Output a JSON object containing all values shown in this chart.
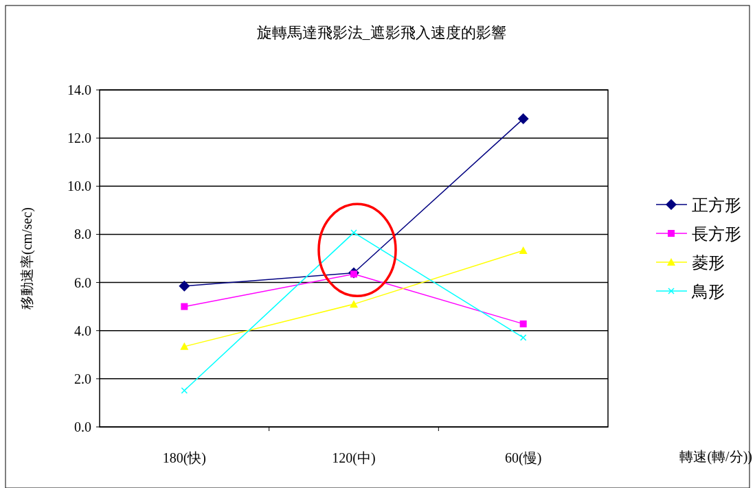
{
  "chart_data": {
    "type": "line",
    "title": "旋轉馬達飛影法_遮影飛入速度的影響",
    "annotations": [
      "轉速(轉/分))"
    ],
    "ylabel": "移動速率(cm/sec)",
    "categories": [
      "180(快)",
      "120(中)",
      "60(慢)"
    ],
    "series": [
      {
        "name": "正方形",
        "color": "#000080",
        "marker": "diamond",
        "values": [
          5.85,
          6.4,
          12.8
        ]
      },
      {
        "name": "長方形",
        "color": "#ff00ff",
        "marker": "square",
        "values": [
          5.0,
          6.35,
          4.28
        ]
      },
      {
        "name": "菱形",
        "color": "#ffff00",
        "marker": "triangle",
        "values": [
          3.34,
          5.1,
          7.33
        ]
      },
      {
        "name": "鳥形",
        "color": "#00ffff",
        "marker": "cross",
        "values": [
          1.51,
          8.07,
          3.71
        ]
      }
    ],
    "ylim": [
      0,
      14
    ],
    "yticks": [
      {
        "value": 0,
        "label": "0.0"
      },
      {
        "value": 2,
        "label": "2.0"
      },
      {
        "value": 4,
        "label": "4.0"
      },
      {
        "value": 6,
        "label": "6.0"
      },
      {
        "value": 8,
        "label": "8.0"
      },
      {
        "value": 10,
        "label": "10.0"
      },
      {
        "value": 12,
        "label": "12.0"
      },
      {
        "value": 14,
        "label": "14.0"
      }
    ],
    "grid": "y",
    "legend": "right"
  }
}
